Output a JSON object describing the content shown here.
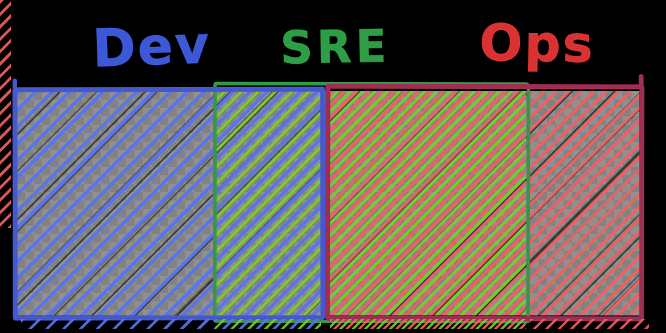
{
  "background": "#000000",
  "labels": {
    "dev": {
      "text": "Dev",
      "color": "#3c58d6"
    },
    "sre": {
      "text": "SRE",
      "color": "#2d9e45"
    },
    "ops": {
      "text": "Ops",
      "color": "#da3232"
    }
  },
  "diagram": {
    "description": "Hand-drawn overlap diagram: SRE span overlaps both Dev and Ops ranges",
    "sections": [
      {
        "id": "dev-only",
        "hatches": [
          "dev"
        ]
      },
      {
        "id": "dev-sre-overlap",
        "hatches": [
          "dev",
          "sre"
        ]
      },
      {
        "id": "sre-ops-overlap",
        "hatches": [
          "sre",
          "ops"
        ]
      },
      {
        "id": "ops-only",
        "hatches": [
          "ops"
        ]
      }
    ],
    "colors": {
      "dev_hatch": "#5a75e8",
      "dev_border": "#4459cd",
      "sre_hatch": "#7ccb29",
      "sre_border": "#37964a",
      "ops_hatch": "#f25f5f",
      "ops_border": "#9e2e53",
      "checker_light": "#909090",
      "checker_dark": "#828282"
    }
  }
}
